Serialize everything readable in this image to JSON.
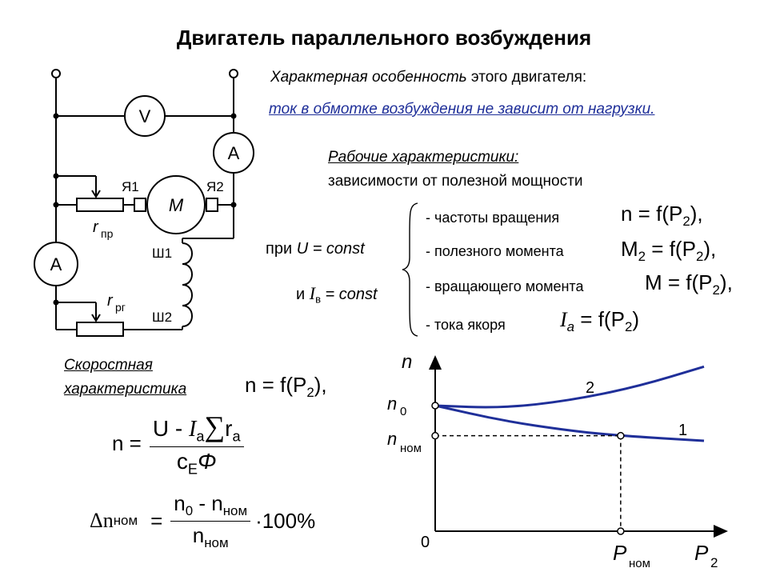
{
  "title": "Двигатель параллельного возбуждения",
  "feature": {
    "line1_italic": "Характерная особенность",
    "line1_rest": " этого двигателя:",
    "line2": "ток в обмотке возбуждения не зависит от нагрузки."
  },
  "working": {
    "heading": "Рабочие характеристики:",
    "subheading": "зависимости от полезной мощности",
    "cond_u_prefix": "при ",
    "cond_u_var": "U",
    "cond_u_rest": " = const",
    "cond_i_prefix": "и ",
    "cond_i_var": "I",
    "cond_i_sub": "в",
    "cond_i_rest": " = const",
    "items": [
      {
        "label": "- частоты вращения",
        "formula": "n = f(P",
        "sub": "2",
        "tail": "),"
      },
      {
        "label": "- полезного момента",
        "formula": "M",
        "fsub": "2",
        "formula2": " = f(P",
        "sub": "2",
        "tail": "),"
      },
      {
        "label": "- вращающего момента",
        "formula": "M = f(P",
        "sub": "2",
        "tail": "),"
      },
      {
        "label": "- тока якоря",
        "formula": "I",
        "fsub": "a",
        "formula2": " = f(P",
        "sub": "2",
        "tail": ")"
      }
    ]
  },
  "speed": {
    "label_line1": "Скоростная",
    "label_line2": "характеристика",
    "eq": "n = f(P",
    "eq_sub": "2",
    "eq_tail": "),",
    "n_eq_lhs": "n =",
    "n_num_a": "U - ",
    "n_num_i": "I",
    "n_num_isub": "a",
    "n_num_sum": "∑",
    "n_num_r": "r",
    "n_num_rsub": "a",
    "n_den_c": "c",
    "n_den_csub": "E",
    "n_den_phi": "Φ",
    "dn_lhs": "Δn",
    "dn_lhs_sub": "ном",
    "dn_eq": "=",
    "dn_num_a": "n",
    "dn_num_asub": "0",
    "dn_num_b": " - n",
    "dn_num_bsub": "ном",
    "dn_den": "n",
    "dn_den_sub": "ном",
    "dn_tail": "·100%"
  },
  "circuit": {
    "voltmeter": "V",
    "ammeter_top": "A",
    "ammeter_left": "A",
    "motor": "M",
    "ya1": "Я1",
    "ya2": "Я2",
    "sh1": "Ш1",
    "sh2": "Ш2",
    "r_pr": "r",
    "r_pr_sub": "пр",
    "r_rg": "r",
    "r_rg_sub": "рг"
  },
  "chart_data": {
    "type": "line",
    "title": "",
    "xlabel": "P2",
    "ylabel": "n",
    "x_ticks": [
      "0",
      "Pном"
    ],
    "y_ticks": [
      "n0",
      "nном"
    ],
    "series": [
      {
        "name": "1",
        "description_points": [
          [
            0,
            1.0
          ],
          [
            0.25,
            0.88
          ],
          [
            0.5,
            0.8
          ],
          [
            0.69,
            0.76
          ],
          [
            1.0,
            0.72
          ]
        ]
      },
      {
        "name": "2",
        "description_points": [
          [
            0,
            1.0
          ],
          [
            0.25,
            0.98
          ],
          [
            0.5,
            1.04
          ],
          [
            0.75,
            1.15
          ],
          [
            1.0,
            1.31
          ]
        ]
      }
    ],
    "axis_labels": {
      "y": "n",
      "x": "P",
      "x_sub": "2",
      "origin": "0",
      "n0": "n",
      "n0_sub": "0",
      "nnom": "n",
      "nnom_sub": "ном",
      "pnom": "P",
      "pnom_sub": "ном"
    },
    "curve_color": "#1f2f99"
  },
  "colors": {
    "accent": "#1f2f99",
    "line": "#000000"
  }
}
